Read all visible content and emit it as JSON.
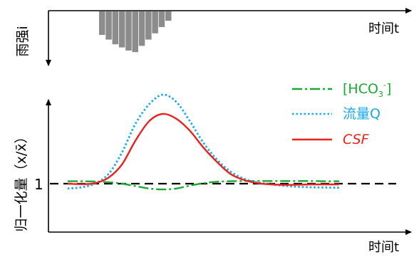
{
  "chart_data": [
    {
      "type": "bar",
      "ylabel": "雨强i",
      "xlabel": "时间t",
      "bar_color": "#8c8c8c",
      "values": [
        3,
        3.6,
        4.2,
        4.6,
        5,
        5.2,
        4.4,
        3.6,
        2.8,
        2,
        1.2
      ]
    },
    {
      "type": "line",
      "ylabel": "归一化量（x/x̄）",
      "xlabel": "时间t",
      "reference": {
        "y": 1,
        "label": "1",
        "style": "dashed",
        "color": "#000000"
      },
      "legend_placement": "top-right",
      "x": [
        0,
        5,
        10,
        15,
        20,
        25,
        30,
        35,
        40,
        45,
        50,
        55,
        60,
        65,
        70,
        75,
        80,
        85,
        90,
        95,
        100
      ],
      "series": [
        {
          "name": "[HCO3-]",
          "legend_main": "[HCO",
          "legend_sub": "3",
          "legend_sup": "-",
          "legend_tail": "]",
          "color": "#1aa832",
          "dash": "dashdot",
          "values": [
            1.1,
            1.1,
            1.09,
            1.06,
            1.0,
            0.9,
            0.8,
            0.76,
            0.8,
            0.92,
            1.02,
            1.08,
            1.1,
            1.11,
            1.11,
            1.11,
            1.11,
            1.11,
            1.11,
            1.1,
            1.1
          ]
        },
        {
          "name": "流量Q",
          "color": "#1aa8e6",
          "dash": "dotted",
          "values": [
            0.8,
            0.85,
            1.0,
            1.4,
            2.3,
            3.5,
            4.3,
            4.7,
            4.4,
            3.6,
            2.7,
            2.0,
            1.5,
            1.2,
            1.05,
            0.97,
            0.91,
            0.87,
            0.85,
            0.84,
            0.83
          ]
        },
        {
          "name": "CSF",
          "color": "#e8221c",
          "dash": "solid",
          "values": [
            1.0,
            0.98,
            1.02,
            1.25,
            1.8,
            2.8,
            3.6,
            3.9,
            3.7,
            3.2,
            2.5,
            1.9,
            1.4,
            1.15,
            1.02,
            0.97,
            0.95,
            0.96,
            0.97,
            0.97,
            0.97
          ]
        }
      ],
      "ylim": [
        0,
        5
      ]
    }
  ]
}
